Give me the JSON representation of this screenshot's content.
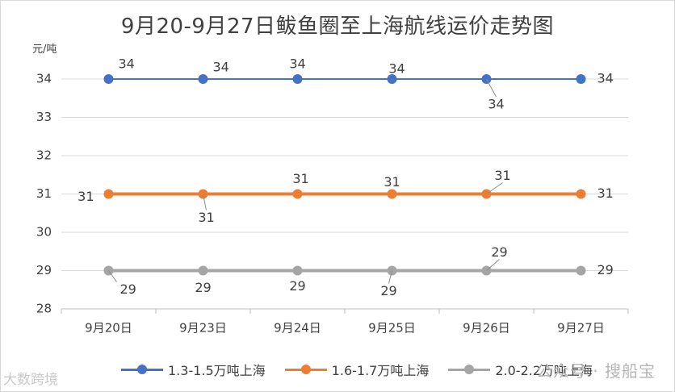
{
  "chart_data": {
    "type": "line",
    "title": "9月20-9月27日鲅鱼圈至上海航线运价走势图",
    "ylabel": "元/吨",
    "xlabel": "",
    "categories": [
      "9月20日",
      "9月23日",
      "9月24日",
      "9月25日",
      "9月26日",
      "9月27日"
    ],
    "ylim": [
      28,
      34
    ],
    "yticks": [
      28,
      29,
      30,
      31,
      32,
      33,
      34
    ],
    "grid": true,
    "legend_position": "bottom",
    "series": [
      {
        "name": "1.3-1.5万吨上海",
        "color": "#4472c4",
        "values": [
          34,
          34,
          34,
          34,
          34,
          34
        ]
      },
      {
        "name": "1.6-1.7万吨上海",
        "color": "#ed7d31",
        "values": [
          31,
          31,
          31,
          31,
          31,
          31
        ]
      },
      {
        "name": "2.0-2.2万吨上海",
        "color": "#a5a5a5",
        "values": [
          29,
          29,
          29,
          29,
          29,
          29
        ]
      }
    ]
  },
  "watermark": {
    "left": "大数跨境",
    "right": "公众号 · 搜船宝"
  }
}
